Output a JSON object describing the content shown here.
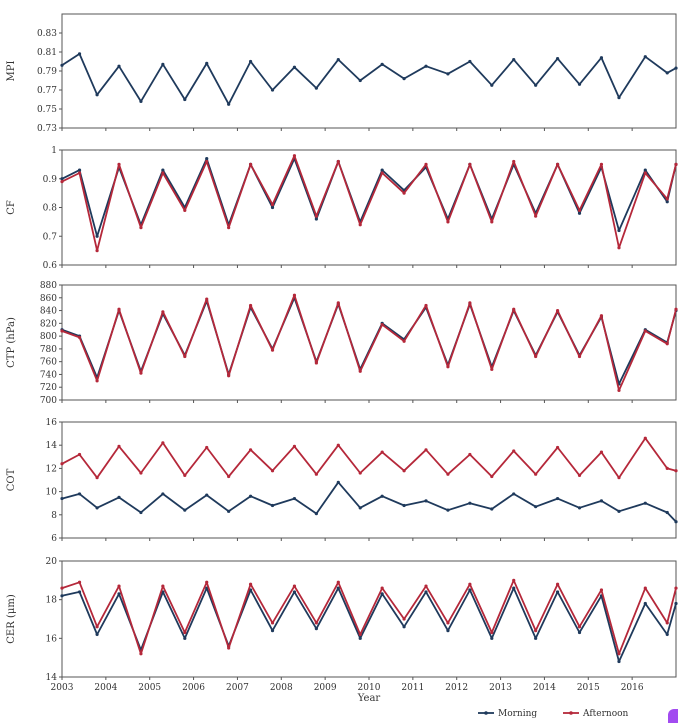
{
  "colors": {
    "morning": "#1f3a5c",
    "afternoon": "#b5283a"
  },
  "chart_data": {
    "type": "line",
    "x_tick_labels": [
      "2003",
      "2004",
      "2005",
      "2006",
      "2007",
      "2008",
      "2009",
      "2010",
      "2011",
      "2012",
      "2013",
      "2014",
      "2015",
      "2016"
    ],
    "xlabel": "Year",
    "xlim": [
      2003.0,
      2017.0
    ],
    "legend": {
      "placement": "bottom-right",
      "entries": [
        "Morning",
        "Afternoon"
      ]
    },
    "panels": [
      {
        "id": "mpi",
        "ylabel": "MPI",
        "ylim": [
          0.73,
          0.85
        ],
        "y_ticks": [
          0.73,
          0.75,
          0.77,
          0.79,
          0.81,
          0.83
        ],
        "y_tick_labels": [
          "0.73",
          "0.75",
          "0.77",
          "0.79",
          "0.81",
          "0.83"
        ],
        "series": [
          {
            "name": "Morning",
            "color": "#1f3a5c",
            "x": [
              2003.0,
              2003.4,
              2003.8,
              2004.3,
              2004.8,
              2005.3,
              2005.8,
              2006.3,
              2006.8,
              2007.3,
              2007.8,
              2008.3,
              2008.8,
              2009.3,
              2009.8,
              2010.3,
              2010.8,
              2011.3,
              2011.8,
              2012.3,
              2012.8,
              2013.3,
              2013.8,
              2014.3,
              2014.8,
              2015.3,
              2015.7,
              2016.3,
              2016.8,
              2017.0
            ],
            "y": [
              0.796,
              0.808,
              0.765,
              0.795,
              0.758,
              0.797,
              0.76,
              0.798,
              0.755,
              0.8,
              0.77,
              0.794,
              0.772,
              0.802,
              0.78,
              0.797,
              0.782,
              0.795,
              0.787,
              0.8,
              0.775,
              0.802,
              0.775,
              0.803,
              0.776,
              0.804,
              0.762,
              0.805,
              0.788,
              0.793
            ]
          }
        ]
      },
      {
        "id": "cf",
        "ylabel": "CF",
        "ylim": [
          0.6,
          1.0
        ],
        "y_ticks": [
          0.6,
          0.7,
          0.8,
          0.9,
          1.0
        ],
        "y_tick_labels": [
          "0.6",
          "0.7",
          "0.8",
          "0.9",
          "1"
        ],
        "series": [
          {
            "name": "Morning",
            "color": "#1f3a5c",
            "x": [
              2003.0,
              2003.4,
              2003.8,
              2004.3,
              2004.8,
              2005.3,
              2005.8,
              2006.3,
              2006.8,
              2007.3,
              2007.8,
              2008.3,
              2008.8,
              2009.3,
              2009.8,
              2010.3,
              2010.8,
              2011.3,
              2011.8,
              2012.3,
              2012.8,
              2013.3,
              2013.8,
              2014.3,
              2014.8,
              2015.3,
              2015.7,
              2016.3,
              2016.8,
              2017.0
            ],
            "y": [
              0.9,
              0.93,
              0.7,
              0.94,
              0.74,
              0.93,
              0.8,
              0.97,
              0.74,
              0.95,
              0.8,
              0.97,
              0.76,
              0.96,
              0.75,
              0.93,
              0.86,
              0.94,
              0.76,
              0.95,
              0.76,
              0.95,
              0.78,
              0.95,
              0.78,
              0.94,
              0.72,
              0.93,
              0.82,
              0.95
            ]
          },
          {
            "name": "Afternoon",
            "color": "#b5283a",
            "x": [
              2003.0,
              2003.4,
              2003.8,
              2004.3,
              2004.8,
              2005.3,
              2005.8,
              2006.3,
              2006.8,
              2007.3,
              2007.8,
              2008.3,
              2008.8,
              2009.3,
              2009.8,
              2010.3,
              2010.8,
              2011.3,
              2011.8,
              2012.3,
              2012.8,
              2013.3,
              2013.8,
              2014.3,
              2014.8,
              2015.3,
              2015.7,
              2016.3,
              2016.8,
              2017.0
            ],
            "y": [
              0.89,
              0.92,
              0.65,
              0.95,
              0.73,
              0.92,
              0.79,
              0.96,
              0.73,
              0.95,
              0.81,
              0.98,
              0.77,
              0.96,
              0.74,
              0.92,
              0.85,
              0.95,
              0.75,
              0.95,
              0.75,
              0.96,
              0.77,
              0.95,
              0.79,
              0.95,
              0.66,
              0.92,
              0.83,
              0.95
            ]
          }
        ]
      },
      {
        "id": "ctp",
        "ylabel": "CTP (hPa)",
        "ylim": [
          700,
          880
        ],
        "y_ticks": [
          700,
          720,
          740,
          760,
          780,
          800,
          820,
          840,
          860,
          880
        ],
        "y_tick_labels": [
          "700",
          "720",
          "740",
          "760",
          "780",
          "800",
          "820",
          "840",
          "860",
          "880"
        ],
        "series": [
          {
            "name": "Morning",
            "color": "#1f3a5c",
            "x": [
              2003.0,
              2003.4,
              2003.8,
              2004.3,
              2004.8,
              2005.3,
              2005.8,
              2006.3,
              2006.8,
              2007.3,
              2007.8,
              2008.3,
              2008.8,
              2009.3,
              2009.8,
              2010.3,
              2010.8,
              2011.3,
              2011.8,
              2012.3,
              2012.8,
              2013.3,
              2013.8,
              2014.3,
              2014.8,
              2015.3,
              2015.7,
              2016.3,
              2016.8,
              2017.0
            ],
            "y": [
              810,
              800,
              735,
              840,
              745,
              835,
              770,
              855,
              740,
              845,
              780,
              860,
              760,
              850,
              748,
              820,
              795,
              845,
              755,
              850,
              752,
              840,
              770,
              838,
              770,
              830,
              725,
              810,
              790,
              840
            ]
          },
          {
            "name": "Afternoon",
            "color": "#b5283a",
            "x": [
              2003.0,
              2003.4,
              2003.8,
              2004.3,
              2004.8,
              2005.3,
              2005.8,
              2006.3,
              2006.8,
              2007.3,
              2007.8,
              2008.3,
              2008.8,
              2009.3,
              2009.8,
              2010.3,
              2010.8,
              2011.3,
              2011.8,
              2012.3,
              2012.8,
              2013.3,
              2013.8,
              2014.3,
              2014.8,
              2015.3,
              2015.7,
              2016.3,
              2016.8,
              2017.0
            ],
            "y": [
              808,
              798,
              730,
              842,
              742,
              838,
              768,
              858,
              738,
              848,
              778,
              864,
              758,
              852,
              745,
              818,
              792,
              848,
              752,
              852,
              748,
              842,
              768,
              840,
              768,
              832,
              715,
              808,
              788,
              842
            ]
          }
        ]
      },
      {
        "id": "cot",
        "ylabel": "COT",
        "ylim": [
          6,
          16
        ],
        "y_ticks": [
          6,
          8,
          10,
          12,
          14,
          16
        ],
        "y_tick_labels": [
          "6",
          "8",
          "10",
          "12",
          "14",
          "16"
        ],
        "series": [
          {
            "name": "Morning",
            "color": "#1f3a5c",
            "x": [
              2003.0,
              2003.4,
              2003.8,
              2004.3,
              2004.8,
              2005.3,
              2005.8,
              2006.3,
              2006.8,
              2007.3,
              2007.8,
              2008.3,
              2008.8,
              2009.3,
              2009.8,
              2010.3,
              2010.8,
              2011.3,
              2011.8,
              2012.3,
              2012.8,
              2013.3,
              2013.8,
              2014.3,
              2014.8,
              2015.3,
              2015.7,
              2016.3,
              2016.8,
              2017.0
            ],
            "y": [
              9.4,
              9.8,
              8.6,
              9.5,
              8.2,
              9.8,
              8.4,
              9.7,
              8.3,
              9.6,
              8.8,
              9.4,
              8.1,
              10.8,
              8.6,
              9.6,
              8.8,
              9.2,
              8.4,
              9.0,
              8.5,
              9.8,
              8.7,
              9.4,
              8.6,
              9.2,
              8.3,
              9.0,
              8.2,
              7.4
            ]
          },
          {
            "name": "Afternoon",
            "color": "#b5283a",
            "x": [
              2003.0,
              2003.4,
              2003.8,
              2004.3,
              2004.8,
              2005.3,
              2005.8,
              2006.3,
              2006.8,
              2007.3,
              2007.8,
              2008.3,
              2008.8,
              2009.3,
              2009.8,
              2010.3,
              2010.8,
              2011.3,
              2011.8,
              2012.3,
              2012.8,
              2013.3,
              2013.8,
              2014.3,
              2014.8,
              2015.3,
              2015.7,
              2016.3,
              2016.8,
              2017.0
            ],
            "y": [
              12.4,
              13.2,
              11.2,
              13.9,
              11.6,
              14.2,
              11.4,
              13.8,
              11.3,
              13.6,
              11.8,
              13.9,
              11.5,
              14.0,
              11.6,
              13.4,
              11.8,
              13.6,
              11.5,
              13.2,
              11.3,
              13.5,
              11.5,
              13.8,
              11.4,
              13.4,
              11.2,
              14.6,
              12.0,
              11.8
            ]
          }
        ]
      },
      {
        "id": "cer",
        "ylabel": "CER (μm)",
        "ylim": [
          14,
          20
        ],
        "y_ticks": [
          14,
          16,
          18,
          20
        ],
        "y_tick_labels": [
          "14",
          "16",
          "18",
          "20"
        ],
        "series": [
          {
            "name": "Morning",
            "color": "#1f3a5c",
            "x": [
              2003.0,
              2003.4,
              2003.8,
              2004.3,
              2004.8,
              2005.3,
              2005.8,
              2006.3,
              2006.8,
              2007.3,
              2007.8,
              2008.3,
              2008.8,
              2009.3,
              2009.8,
              2010.3,
              2010.8,
              2011.3,
              2011.8,
              2012.3,
              2012.8,
              2013.3,
              2013.8,
              2014.3,
              2014.8,
              2015.3,
              2015.7,
              2016.3,
              2016.8,
              2017.0
            ],
            "y": [
              18.2,
              18.4,
              16.2,
              18.3,
              15.4,
              18.4,
              16.0,
              18.6,
              15.6,
              18.5,
              16.4,
              18.4,
              16.5,
              18.6,
              16.0,
              18.3,
              16.6,
              18.4,
              16.4,
              18.5,
              16.0,
              18.6,
              16.0,
              18.4,
              16.3,
              18.2,
              14.8,
              17.8,
              16.2,
              17.8
            ]
          },
          {
            "name": "Afternoon",
            "color": "#b5283a",
            "x": [
              2003.0,
              2003.4,
              2003.8,
              2004.3,
              2004.8,
              2005.3,
              2005.8,
              2006.3,
              2006.8,
              2007.3,
              2007.8,
              2008.3,
              2008.8,
              2009.3,
              2009.8,
              2010.3,
              2010.8,
              2011.3,
              2011.8,
              2012.3,
              2012.8,
              2013.3,
              2013.8,
              2014.3,
              2014.8,
              2015.3,
              2015.7,
              2016.3,
              2016.8,
              2017.0
            ],
            "y": [
              18.6,
              18.9,
              16.6,
              18.7,
              15.2,
              18.7,
              16.3,
              18.9,
              15.5,
              18.8,
              16.8,
              18.7,
              16.8,
              18.9,
              16.2,
              18.6,
              17.0,
              18.7,
              16.8,
              18.8,
              16.3,
              19.0,
              16.4,
              18.8,
              16.6,
              18.5,
              15.2,
              18.6,
              16.8,
              18.6
            ]
          }
        ]
      }
    ]
  }
}
